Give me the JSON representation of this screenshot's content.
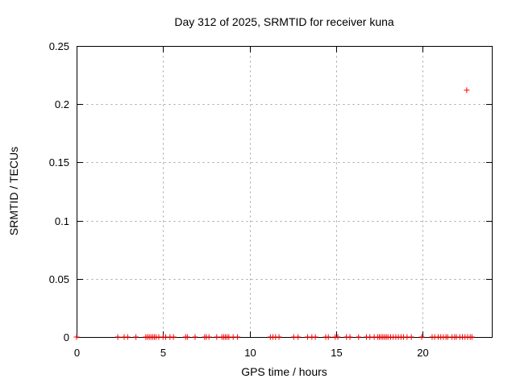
{
  "chart_data": {
    "type": "scatter",
    "title": "Day 312 of 2025, SRMTID for receiver kuna",
    "xlabel": "GPS time / hours",
    "ylabel": "SRMTID / TECUs",
    "xlim": [
      0,
      24
    ],
    "ylim": [
      0,
      0.25
    ],
    "x_ticks": [
      0,
      5,
      10,
      15,
      20
    ],
    "y_ticks": [
      "0",
      "0.05",
      "0.1",
      "0.15",
      "0.2",
      "0.25"
    ],
    "grid": true,
    "legend_position": "none",
    "marker": "plus",
    "marker_color": "#ff0000",
    "grid_color": "#a0a0a0",
    "border_color": "#000000",
    "series": [
      {
        "name": "SRMTID",
        "points": [
          [
            0.0,
            0
          ],
          [
            2.38,
            0
          ],
          [
            2.75,
            0
          ],
          [
            2.95,
            0
          ],
          [
            3.43,
            0
          ],
          [
            4.0,
            0
          ],
          [
            4.1,
            0
          ],
          [
            4.2,
            0
          ],
          [
            4.3,
            0
          ],
          [
            4.4,
            0
          ],
          [
            4.5,
            0
          ],
          [
            4.6,
            0
          ],
          [
            4.75,
            0
          ],
          [
            5.0,
            0
          ],
          [
            5.15,
            0
          ],
          [
            5.4,
            0
          ],
          [
            5.6,
            0
          ],
          [
            6.3,
            0
          ],
          [
            6.4,
            0
          ],
          [
            6.85,
            0
          ],
          [
            7.4,
            0
          ],
          [
            7.5,
            0
          ],
          [
            7.65,
            0
          ],
          [
            8.1,
            0
          ],
          [
            8.4,
            0
          ],
          [
            8.5,
            0
          ],
          [
            8.6,
            0
          ],
          [
            8.7,
            0
          ],
          [
            8.8,
            0
          ],
          [
            9.05,
            0
          ],
          [
            9.3,
            0
          ],
          [
            11.2,
            0
          ],
          [
            11.35,
            0
          ],
          [
            11.5,
            0
          ],
          [
            11.7,
            0
          ],
          [
            12.55,
            0
          ],
          [
            12.8,
            0
          ],
          [
            13.35,
            0
          ],
          [
            13.6,
            0
          ],
          [
            13.8,
            0
          ],
          [
            14.4,
            0
          ],
          [
            14.55,
            0
          ],
          [
            14.95,
            0
          ],
          [
            15.1,
            0
          ],
          [
            15.6,
            0
          ],
          [
            15.8,
            0
          ],
          [
            16.3,
            0
          ],
          [
            16.75,
            0
          ],
          [
            16.95,
            0
          ],
          [
            17.2,
            0
          ],
          [
            17.4,
            0
          ],
          [
            17.5,
            0
          ],
          [
            17.6,
            0
          ],
          [
            17.7,
            0
          ],
          [
            17.8,
            0
          ],
          [
            17.9,
            0
          ],
          [
            18.0,
            0
          ],
          [
            18.15,
            0
          ],
          [
            18.3,
            0
          ],
          [
            18.45,
            0
          ],
          [
            18.6,
            0
          ],
          [
            18.75,
            0
          ],
          [
            18.9,
            0
          ],
          [
            19.1,
            0
          ],
          [
            19.35,
            0
          ],
          [
            19.95,
            0
          ],
          [
            20.55,
            0
          ],
          [
            20.7,
            0
          ],
          [
            20.9,
            0
          ],
          [
            21.05,
            0
          ],
          [
            21.2,
            0
          ],
          [
            21.35,
            0
          ],
          [
            21.45,
            0
          ],
          [
            21.7,
            0
          ],
          [
            21.85,
            0
          ],
          [
            21.95,
            0
          ],
          [
            22.15,
            0
          ],
          [
            22.3,
            0
          ],
          [
            22.45,
            0
          ],
          [
            22.6,
            0
          ],
          [
            22.75,
            0
          ],
          [
            22.85,
            0
          ],
          [
            22.55,
            0.212
          ]
        ]
      }
    ]
  }
}
